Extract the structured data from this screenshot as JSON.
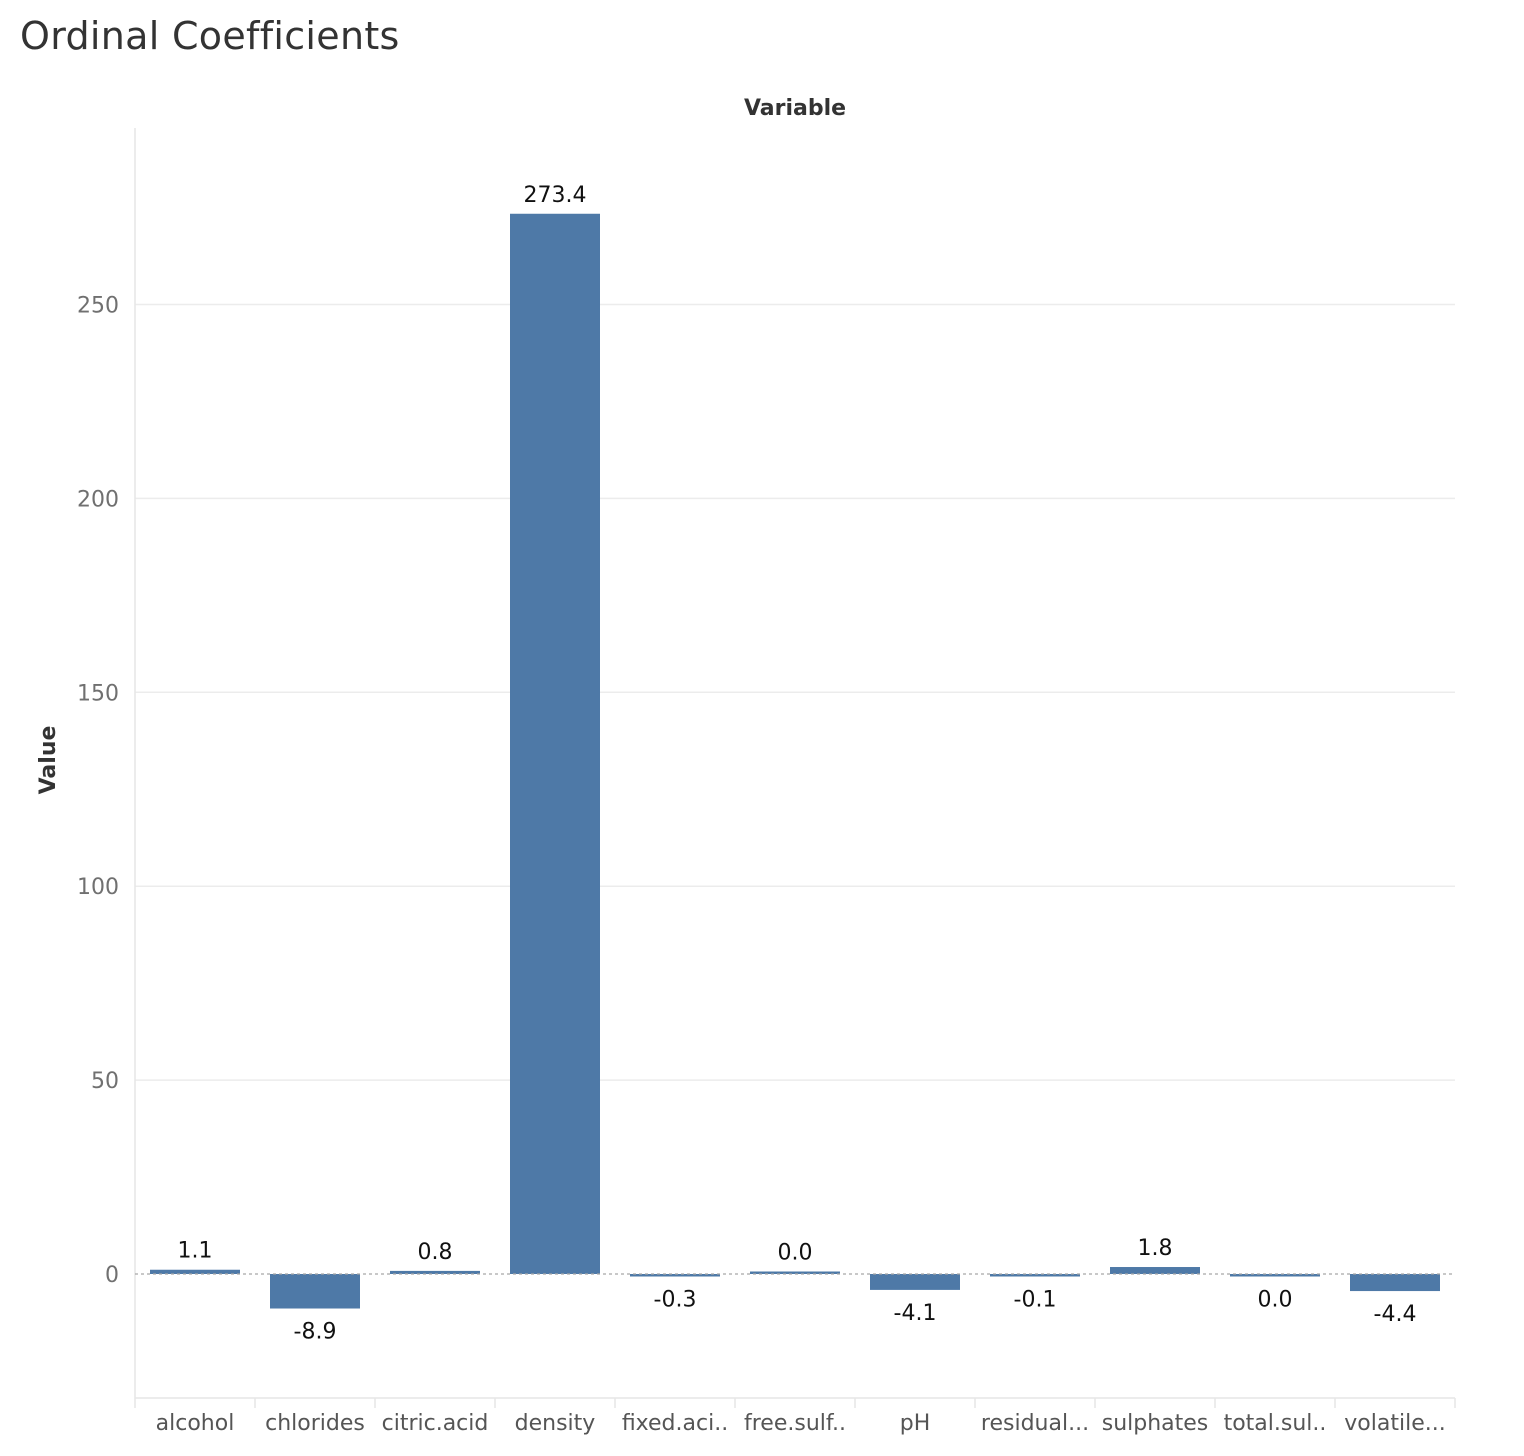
{
  "chart_data": {
    "type": "bar",
    "title": "Ordinal Coefficients",
    "xlabel": "Variable",
    "ylabel": "Value",
    "categories": [
      "alcohol",
      "chlorides",
      "citric.acid",
      "density",
      "fixed.aci..",
      "free.sulf..",
      "pH",
      "residual...",
      "sulphates",
      "total.sul..",
      "volatile..."
    ],
    "values": [
      1.1,
      -8.9,
      0.8,
      273.4,
      -0.3,
      0.0,
      -4.1,
      -0.1,
      1.8,
      -0.03,
      -4.4
    ],
    "value_labels": [
      "1.1",
      "-8.9",
      "0.8",
      "273.4",
      "-0.3",
      "0.0",
      "-4.1",
      "-0.1",
      "1.8",
      "0.0",
      "-4.4"
    ],
    "yticks": [
      0,
      50,
      100,
      150,
      200,
      250
    ],
    "ytick_labels": [
      "0",
      "50",
      "100",
      "150",
      "200",
      "250"
    ],
    "ylim": [
      -32,
      295
    ],
    "grid": true,
    "x_axis_title_position": "top",
    "colors": {
      "bar": "#4e79a7"
    }
  }
}
